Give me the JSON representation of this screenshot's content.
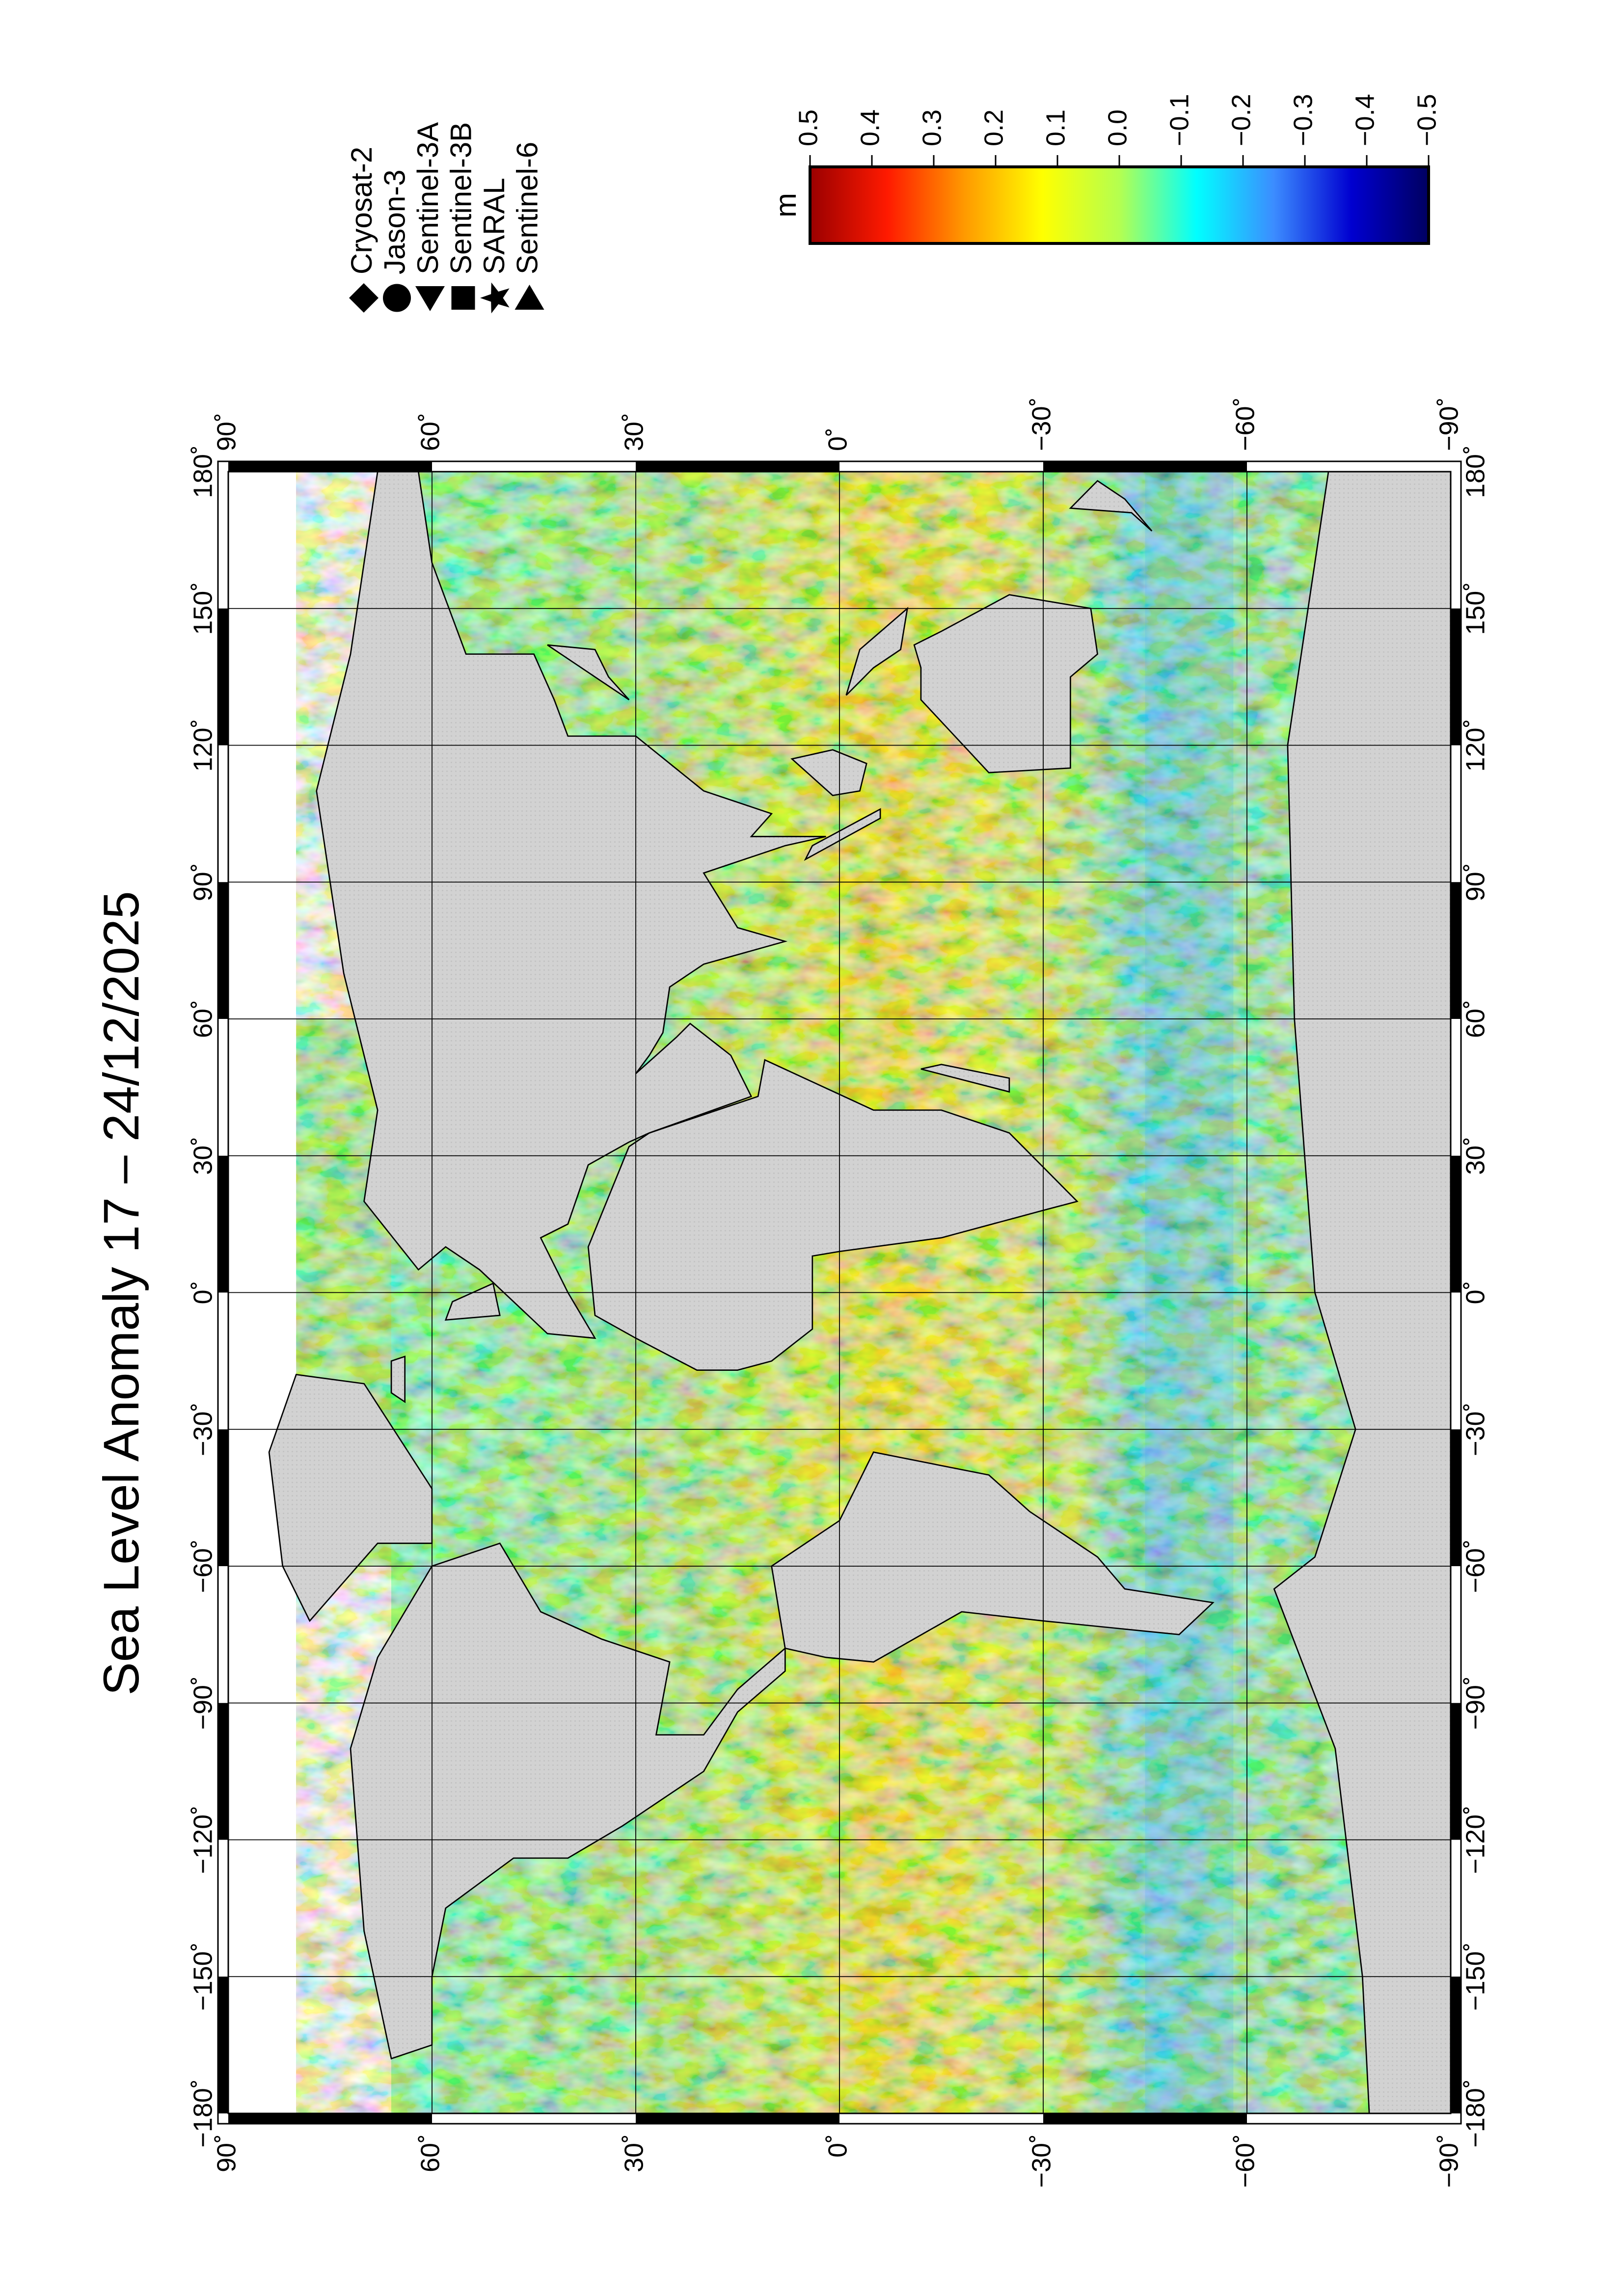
{
  "title": "Sea Level Anomaly 17 – 24/12/2025",
  "map": {
    "lonlim": [
      -180,
      180
    ],
    "latlim": [
      -90,
      90
    ],
    "lonticks": [
      {
        "value": -180,
        "label": "−180˚"
      },
      {
        "value": -150,
        "label": "−150˚"
      },
      {
        "value": -120,
        "label": "−120˚"
      },
      {
        "value": -90,
        "label": "−90˚"
      },
      {
        "value": -60,
        "label": "−60˚"
      },
      {
        "value": -30,
        "label": "−30˚"
      },
      {
        "value": 0,
        "label": "0˚"
      },
      {
        "value": 30,
        "label": "30˚"
      },
      {
        "value": 60,
        "label": "60˚"
      },
      {
        "value": 90,
        "label": "90˚"
      },
      {
        "value": 120,
        "label": "120˚"
      },
      {
        "value": 150,
        "label": "150˚"
      },
      {
        "value": 180,
        "label": "180˚"
      }
    ],
    "latticks": [
      {
        "value": 90,
        "label": "90˚"
      },
      {
        "value": 60,
        "label": "60˚"
      },
      {
        "value": 30,
        "label": "30˚"
      },
      {
        "value": 0,
        "label": "0˚"
      },
      {
        "value": -30,
        "label": "−30˚"
      },
      {
        "value": -60,
        "label": "−60˚"
      },
      {
        "value": -90,
        "label": "−90˚"
      }
    ],
    "grid": true
  },
  "colorbar": {
    "unit": "m",
    "lim": [
      0.5,
      -0.5
    ],
    "ticks": [
      0.5,
      0.4,
      0.3,
      0.2,
      0.1,
      {
        "value": 0,
        "label": "0.0"
      },
      {
        "value": -0.1,
        "label": "−0.1"
      },
      {
        "value": -0.2,
        "label": "−0.2"
      },
      {
        "value": -0.3,
        "label": "−0.3"
      },
      {
        "value": -0.4,
        "label": "−0.4"
      },
      {
        "value": -0.5,
        "label": "−0.5"
      }
    ],
    "colors": [
      "#9a0000",
      "#ff1a00",
      "#ff9a00",
      "#ffff00",
      "#b4ff50",
      "#00ffff",
      "#3c8cff",
      "#0000d0",
      "#000060"
    ]
  },
  "legend": [
    {
      "name": "Cryosat-2",
      "marker": "diamond"
    },
    {
      "name": "Jason-3",
      "marker": "circle"
    },
    {
      "name": "Sentinel-3A",
      "marker": "triangle-left"
    },
    {
      "name": "Sentinel-3B",
      "marker": "square"
    },
    {
      "name": "SARAL",
      "marker": "star"
    },
    {
      "name": "Sentinel-6",
      "marker": "triangle-right"
    }
  ]
}
